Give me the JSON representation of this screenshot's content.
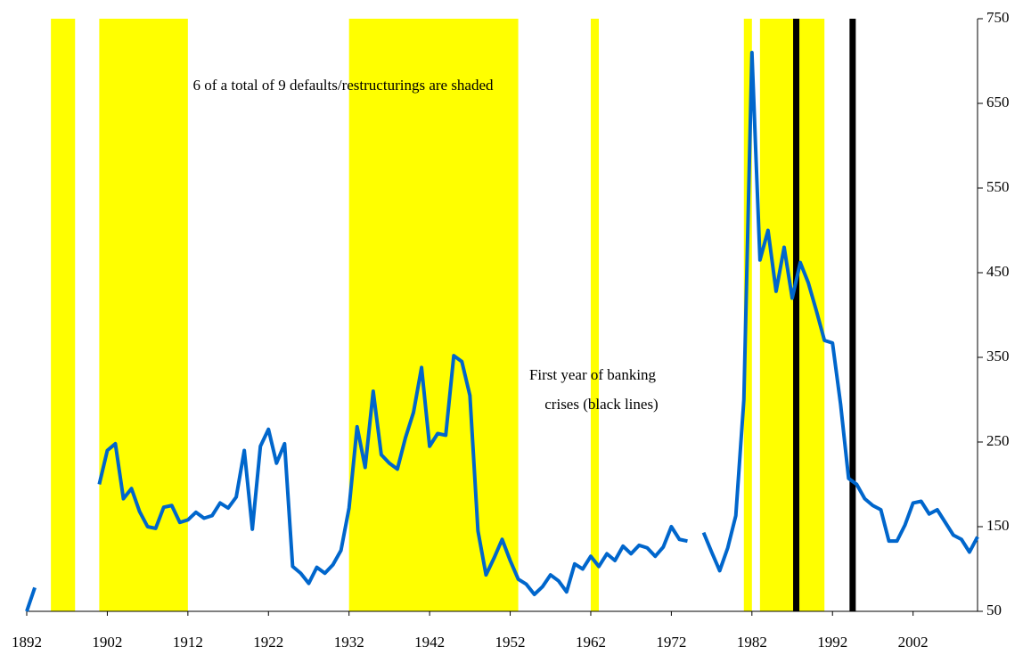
{
  "chart_data": {
    "type": "line",
    "annotations": [
      "6 of a total of 9 defaults/restructurings are shaded",
      "First year of banking",
      "crises (black lines)"
    ],
    "x": [
      1892,
      1893,
      1894,
      1895,
      1896,
      1897,
      1898,
      1899,
      1900,
      1901,
      1902,
      1903,
      1904,
      1905,
      1906,
      1907,
      1908,
      1909,
      1910,
      1911,
      1912,
      1913,
      1914,
      1915,
      1916,
      1917,
      1918,
      1919,
      1920,
      1921,
      1922,
      1923,
      1924,
      1925,
      1926,
      1927,
      1928,
      1929,
      1930,
      1931,
      1932,
      1933,
      1934,
      1935,
      1936,
      1937,
      1938,
      1939,
      1940,
      1941,
      1942,
      1943,
      1944,
      1945,
      1946,
      1947,
      1948,
      1949,
      1950,
      1951,
      1952,
      1953,
      1954,
      1955,
      1956,
      1957,
      1958,
      1959,
      1960,
      1961,
      1962,
      1963,
      1964,
      1965,
      1966,
      1967,
      1968,
      1969,
      1970,
      1971,
      1972,
      1973,
      1974,
      1975,
      1976,
      1977,
      1978,
      1979,
      1980,
      1981,
      1982,
      1983,
      1984,
      1985,
      1986,
      1987,
      1988,
      1989,
      1990,
      1991,
      1992,
      1993,
      1994,
      1995,
      1996,
      1997,
      1998,
      1999,
      2000,
      2001,
      2002,
      2003,
      2004,
      2005,
      2006,
      2007,
      2008,
      2009,
      2010
    ],
    "series": [
      {
        "color": "#0066cc",
        "values": [
          50,
          78,
          null,
          null,
          null,
          null,
          null,
          null,
          null,
          200,
          240,
          248,
          183,
          195,
          168,
          150,
          148,
          173,
          175,
          155,
          158,
          167,
          160,
          163,
          178,
          172,
          185,
          240,
          147,
          245,
          265,
          225,
          248,
          103,
          95,
          83,
          102,
          95,
          105,
          122,
          172,
          268,
          220,
          310,
          235,
          225,
          218,
          255,
          285,
          338,
          245,
          260,
          258,
          352,
          345,
          305,
          145,
          93,
          113,
          135,
          110,
          88,
          82,
          70,
          79,
          93,
          86,
          73,
          106,
          100,
          115,
          103,
          118,
          110,
          127,
          118,
          128,
          125,
          115,
          126,
          150,
          135,
          133,
          null,
          143,
          120,
          98,
          125,
          163,
          300,
          710,
          465,
          500,
          428,
          480,
          420,
          462,
          438,
          405,
          370,
          367,
          295,
          207,
          200,
          183,
          175,
          170,
          133,
          133,
          152,
          178,
          180,
          165,
          170,
          155,
          140,
          135,
          120,
          138
        ]
      }
    ],
    "shaded_periods": [
      [
        1895,
        1898
      ],
      [
        1901,
        1912
      ],
      [
        1932,
        1953
      ],
      [
        1962,
        1963
      ],
      [
        1981,
        1982
      ],
      [
        1983,
        1991
      ]
    ],
    "shade_color": "#ffff00",
    "banking_crises": [
      1987,
      1994
    ],
    "banking_color": "#000000",
    "xlim": [
      1892,
      2010
    ],
    "xticks": [
      1892,
      1902,
      1912,
      1922,
      1932,
      1942,
      1952,
      1962,
      1972,
      1982,
      1992,
      2002
    ],
    "ylim": [
      50,
      750
    ],
    "yticks": [
      50,
      150,
      250,
      350,
      450,
      550,
      650,
      750
    ],
    "y_axis_side": "right"
  }
}
